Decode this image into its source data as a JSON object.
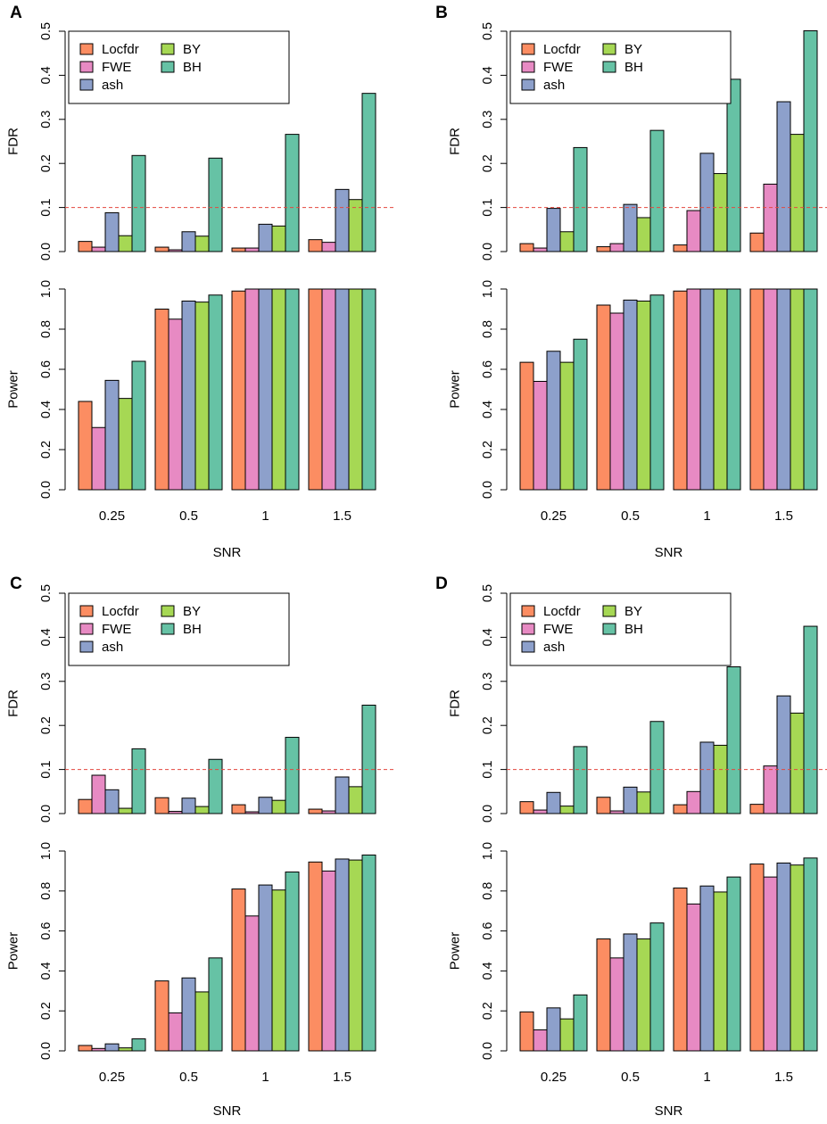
{
  "colors": {
    "Locfdr": "#fc8d62",
    "FWE": "#e78ac3",
    "ash": "#8da0cb",
    "BY": "#a6d854",
    "BH": "#66c2a5",
    "threshold": "#e3483f",
    "axis": "#000000"
  },
  "chart_data": [
    {
      "panel": "A",
      "type": "bar",
      "xlabel": "SNR",
      "categories": [
        "0.25",
        "0.5",
        "1",
        "1.5"
      ],
      "legend": [
        "Locfdr",
        "FWE",
        "ash",
        "BY",
        "BH"
      ],
      "fdr": {
        "ylabel": "FDR",
        "ylim": [
          0,
          0.5
        ],
        "yticks": [
          "0.0",
          "0.1",
          "0.2",
          "0.3",
          "0.4",
          "0.5"
        ],
        "threshold": 0.1,
        "series": [
          {
            "name": "Locfdr",
            "values": [
              0.023,
              0.01,
              0.008,
              0.027
            ]
          },
          {
            "name": "FWE",
            "values": [
              0.01,
              0.004,
              0.008,
              0.021
            ]
          },
          {
            "name": "ash",
            "values": [
              0.088,
              0.045,
              0.062,
              0.141
            ]
          },
          {
            "name": "BY",
            "values": [
              0.036,
              0.035,
              0.058,
              0.118
            ]
          },
          {
            "name": "BH",
            "values": [
              0.218,
              0.212,
              0.266,
              0.359
            ]
          }
        ]
      },
      "power": {
        "ylabel": "Power",
        "ylim": [
          0,
          1
        ],
        "yticks": [
          "0.0",
          "0.2",
          "0.4",
          "0.6",
          "0.8",
          "1.0"
        ],
        "series": [
          {
            "name": "Locfdr",
            "values": [
              0.44,
              0.9,
              0.99,
              1.0
            ]
          },
          {
            "name": "FWE",
            "values": [
              0.31,
              0.85,
              1.0,
              1.0
            ]
          },
          {
            "name": "ash",
            "values": [
              0.545,
              0.94,
              1.0,
              1.0
            ]
          },
          {
            "name": "BY",
            "values": [
              0.455,
              0.935,
              1.0,
              1.0
            ]
          },
          {
            "name": "BH",
            "values": [
              0.64,
              0.97,
              1.0,
              1.0
            ]
          }
        ]
      }
    },
    {
      "panel": "B",
      "type": "bar",
      "xlabel": "SNR",
      "categories": [
        "0.25",
        "0.5",
        "1",
        "1.5"
      ],
      "legend": [
        "Locfdr",
        "FWE",
        "ash",
        "BY",
        "BH"
      ],
      "fdr": {
        "ylabel": "FDR",
        "ylim": [
          0,
          0.5
        ],
        "yticks": [
          "0.0",
          "0.1",
          "0.2",
          "0.3",
          "0.4",
          "0.5"
        ],
        "threshold": 0.1,
        "series": [
          {
            "name": "Locfdr",
            "values": [
              0.018,
              0.011,
              0.015,
              0.042
            ]
          },
          {
            "name": "FWE",
            "values": [
              0.008,
              0.018,
              0.093,
              0.153
            ]
          },
          {
            "name": "ash",
            "values": [
              0.098,
              0.107,
              0.223,
              0.34
            ]
          },
          {
            "name": "BY",
            "values": [
              0.045,
              0.077,
              0.177,
              0.266
            ]
          },
          {
            "name": "BH",
            "values": [
              0.236,
              0.275,
              0.391,
              0.501
            ]
          }
        ]
      },
      "power": {
        "ylabel": "Power",
        "ylim": [
          0,
          1
        ],
        "yticks": [
          "0.0",
          "0.2",
          "0.4",
          "0.6",
          "0.8",
          "1.0"
        ],
        "series": [
          {
            "name": "Locfdr",
            "values": [
              0.635,
              0.92,
              0.99,
              1.0
            ]
          },
          {
            "name": "FWE",
            "values": [
              0.54,
              0.88,
              1.0,
              1.0
            ]
          },
          {
            "name": "ash",
            "values": [
              0.69,
              0.945,
              1.0,
              1.0
            ]
          },
          {
            "name": "BY",
            "values": [
              0.635,
              0.94,
              1.0,
              1.0
            ]
          },
          {
            "name": "BH",
            "values": [
              0.75,
              0.97,
              1.0,
              1.0
            ]
          }
        ]
      }
    },
    {
      "panel": "C",
      "type": "bar",
      "xlabel": "SNR",
      "categories": [
        "0.25",
        "0.5",
        "1",
        "1.5"
      ],
      "legend": [
        "Locfdr",
        "FWE",
        "ash",
        "BY",
        "BH"
      ],
      "fdr": {
        "ylabel": "FDR",
        "ylim": [
          0,
          0.5
        ],
        "yticks": [
          "0.0",
          "0.1",
          "0.2",
          "0.3",
          "0.4",
          "0.5"
        ],
        "threshold": 0.1,
        "series": [
          {
            "name": "Locfdr",
            "values": [
              0.032,
              0.036,
              0.02,
              0.01
            ]
          },
          {
            "name": "FWE",
            "values": [
              0.087,
              0.005,
              0.004,
              0.006
            ]
          },
          {
            "name": "ash",
            "values": [
              0.054,
              0.035,
              0.037,
              0.083
            ]
          },
          {
            "name": "BY",
            "values": [
              0.012,
              0.016,
              0.03,
              0.061
            ]
          },
          {
            "name": "BH",
            "values": [
              0.147,
              0.123,
              0.173,
              0.246
            ]
          }
        ]
      },
      "power": {
        "ylabel": "Power",
        "ylim": [
          0,
          1
        ],
        "yticks": [
          "0.0",
          "0.2",
          "0.4",
          "0.6",
          "0.8",
          "1.0"
        ],
        "series": [
          {
            "name": "Locfdr",
            "values": [
              0.027,
              0.35,
              0.81,
              0.945
            ]
          },
          {
            "name": "FWE",
            "values": [
              0.012,
              0.19,
              0.675,
              0.9
            ]
          },
          {
            "name": "ash",
            "values": [
              0.035,
              0.365,
              0.83,
              0.96
            ]
          },
          {
            "name": "BY",
            "values": [
              0.015,
              0.295,
              0.805,
              0.955
            ]
          },
          {
            "name": "BH",
            "values": [
              0.06,
              0.465,
              0.895,
              0.98
            ]
          }
        ]
      }
    },
    {
      "panel": "D",
      "type": "bar",
      "xlabel": "SNR",
      "categories": [
        "0.25",
        "0.5",
        "1",
        "1.5"
      ],
      "legend": [
        "Locfdr",
        "FWE",
        "ash",
        "BY",
        "BH"
      ],
      "fdr": {
        "ylabel": "FDR",
        "ylim": [
          0,
          0.5
        ],
        "yticks": [
          "0.0",
          "0.1",
          "0.2",
          "0.3",
          "0.4",
          "0.5"
        ],
        "threshold": 0.1,
        "series": [
          {
            "name": "Locfdr",
            "values": [
              0.027,
              0.037,
              0.02,
              0.021
            ]
          },
          {
            "name": "FWE",
            "values": [
              0.008,
              0.006,
              0.05,
              0.108
            ]
          },
          {
            "name": "ash",
            "values": [
              0.048,
              0.06,
              0.162,
              0.267
            ]
          },
          {
            "name": "BY",
            "values": [
              0.017,
              0.049,
              0.155,
              0.228
            ]
          },
          {
            "name": "BH",
            "values": [
              0.152,
              0.209,
              0.333,
              0.425
            ]
          }
        ]
      },
      "power": {
        "ylabel": "Power",
        "ylim": [
          0,
          1
        ],
        "yticks": [
          "0.0",
          "0.2",
          "0.4",
          "0.6",
          "0.8",
          "1.0"
        ],
        "series": [
          {
            "name": "Locfdr",
            "values": [
              0.195,
              0.56,
              0.815,
              0.935
            ]
          },
          {
            "name": "FWE",
            "values": [
              0.105,
              0.465,
              0.735,
              0.87
            ]
          },
          {
            "name": "ash",
            "values": [
              0.215,
              0.585,
              0.825,
              0.94
            ]
          },
          {
            "name": "BY",
            "values": [
              0.16,
              0.56,
              0.795,
              0.93
            ]
          },
          {
            "name": "BH",
            "values": [
              0.28,
              0.64,
              0.87,
              0.965
            ]
          }
        ]
      }
    }
  ]
}
